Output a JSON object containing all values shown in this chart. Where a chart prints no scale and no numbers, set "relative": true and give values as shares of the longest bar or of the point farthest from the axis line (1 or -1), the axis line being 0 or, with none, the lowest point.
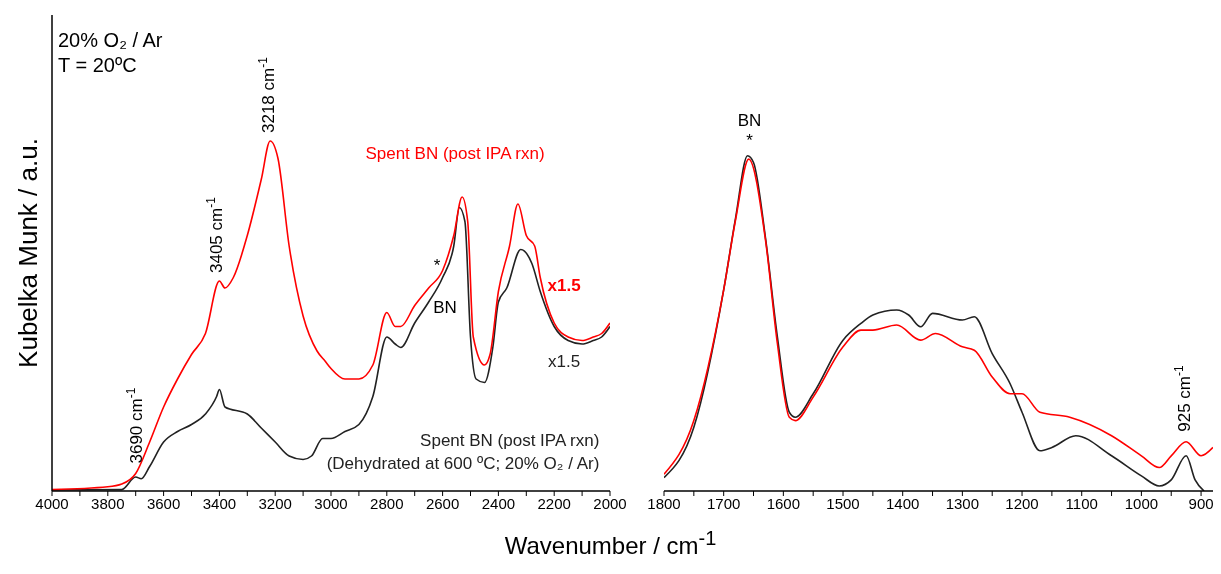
{
  "chart_data": [
    {
      "type": "line",
      "ylabel": "Kubelka Munk / a.u.",
      "xlabel": "Wavenumber / cm$^{-1}$",
      "relative": true,
      "tick_labels": "x",
      "xlim": [
        4000,
        2000
      ],
      "xticks": [
        4000,
        {
          "value": 3900,
          "label": null
        },
        3800,
        {
          "value": 3700,
          "label": null
        },
        3600,
        {
          "value": 3500,
          "label": null
        },
        3400,
        {
          "value": 3300,
          "label": null
        },
        3200,
        {
          "value": 3100,
          "label": null
        },
        3000,
        {
          "value": 2900,
          "label": null
        },
        2800,
        {
          "value": 2700,
          "label": null
        },
        2600,
        {
          "value": 2500,
          "label": null
        },
        2400,
        {
          "value": 2300,
          "label": null
        },
        2200,
        {
          "value": 2100,
          "label": null
        },
        2000
      ],
      "annotations": [
        "20% O₂ / Ar",
        "T = 20ºC",
        {
          "text": "3218 cm$^{-1}$",
          "x": 3218,
          "y": 1.0
        },
        {
          "text": "3405 cm$^{-1}$",
          "x": 3405,
          "y": 0.6
        },
        {
          "text": "3690 cm$^{-1}$",
          "x": 3690,
          "y": 0.05
        },
        {
          "text": "x1.5",
          "x": 2150,
          "y": 0.44
        },
        {
          "text": "x1.5",
          "x": 2150,
          "y": 0.43
        },
        {
          "text": "*",
          "x": 2570,
          "y": 0.68
        },
        {
          "text": "BN",
          "x": 2570,
          "y": 0.68
        }
      ],
      "series": [
        {
          "name": "Spent BN (post IPA rxn)",
          "color": "#ff0000",
          "x": [
            4000,
            3800,
            3750,
            3700,
            3650,
            3600,
            3550,
            3500,
            3450,
            3400,
            3380,
            3350,
            3300,
            3250,
            3218,
            3190,
            3150,
            3100,
            3050,
            3020,
            3000,
            2950,
            2900,
            2850,
            2800,
            2770,
            2750,
            2700,
            2650,
            2600,
            2560,
            2530,
            2510,
            2490,
            2450,
            2430,
            2400,
            2360,
            2330,
            2300,
            2270,
            2250,
            2200,
            2150,
            2100,
            2060,
            2030,
            2000
          ],
          "values": [
            0.004,
            0.012,
            0.02,
            0.05,
            0.14,
            0.24,
            0.32,
            0.39,
            0.45,
            0.6,
            0.58,
            0.61,
            0.73,
            0.89,
            1.0,
            0.95,
            0.7,
            0.5,
            0.4,
            0.37,
            0.35,
            0.32,
            0.32,
            0.36,
            0.51,
            0.47,
            0.47,
            0.53,
            0.58,
            0.63,
            0.73,
            0.84,
            0.77,
            0.44,
            0.36,
            0.39,
            0.57,
            0.7,
            0.82,
            0.73,
            0.7,
            0.61,
            0.48,
            0.44,
            0.43,
            0.44,
            0.45,
            0.48
          ]
        },
        {
          "name": "Spent BN (post IPA rxn)\n(Dehydrated at 600 ºC; 20% O₂ / Ar)",
          "color": "#222222",
          "x": [
            4000,
            3750,
            3700,
            3680,
            3650,
            3600,
            3550,
            3500,
            3450,
            3410,
            3400,
            3380,
            3300,
            3250,
            3200,
            3150,
            3100,
            3070,
            3030,
            3000,
            2950,
            2900,
            2850,
            2800,
            2770,
            2750,
            2700,
            2650,
            2600,
            2560,
            2540,
            2520,
            2500,
            2480,
            2450,
            2420,
            2400,
            2370,
            2320,
            2280,
            2250,
            2200,
            2150,
            2100,
            2060,
            2030,
            2000
          ],
          "values": [
            0.003,
            0.004,
            0.04,
            0.035,
            0.07,
            0.14,
            0.17,
            0.19,
            0.22,
            0.27,
            0.29,
            0.24,
            0.22,
            0.18,
            0.14,
            0.1,
            0.09,
            0.1,
            0.15,
            0.15,
            0.17,
            0.19,
            0.27,
            0.44,
            0.42,
            0.41,
            0.48,
            0.54,
            0.61,
            0.7,
            0.81,
            0.77,
            0.44,
            0.32,
            0.31,
            0.41,
            0.54,
            0.58,
            0.69,
            0.65,
            0.57,
            0.47,
            0.43,
            0.42,
            0.43,
            0.44,
            0.47
          ]
        }
      ]
    },
    {
      "type": "line",
      "relative": true,
      "tick_labels": "x",
      "xlim": [
        1800,
        880
      ],
      "xticks": [
        1800,
        {
          "value": 1750,
          "label": null
        },
        1700,
        {
          "value": 1650,
          "label": null
        },
        1600,
        {
          "value": 1550,
          "label": null
        },
        1500,
        {
          "value": 1450,
          "label": null
        },
        1400,
        {
          "value": 1350,
          "label": null
        },
        1300,
        {
          "value": 1250,
          "label": null
        },
        1200,
        {
          "value": 1150,
          "label": null
        },
        1100,
        {
          "value": 1050,
          "label": null
        },
        1000,
        {
          "value": 950,
          "label": null
        },
        900
      ],
      "annotations": [
        {
          "text": "BN",
          "x": 1660,
          "y": 1.0
        },
        {
          "text": "*",
          "x": 1660,
          "y": 1.0
        },
        {
          "text": "925 cm$^{-1}$",
          "x": 925,
          "y": 0.147
        }
      ],
      "series": [
        {
          "color": "#ff0000",
          "x": [
            1800,
            1750,
            1700,
            1680,
            1658,
            1630,
            1610,
            1590,
            1580,
            1550,
            1500,
            1470,
            1450,
            1410,
            1370,
            1345,
            1300,
            1280,
            1250,
            1220,
            1200,
            1170,
            1120,
            1050,
            1000,
            970,
            950,
            925,
            900,
            880
          ],
          "values": [
            0.05,
            0.21,
            0.6,
            0.81,
            0.99,
            0.75,
            0.44,
            0.22,
            0.21,
            0.28,
            0.43,
            0.48,
            0.48,
            0.495,
            0.45,
            0.47,
            0.43,
            0.42,
            0.34,
            0.29,
            0.29,
            0.235,
            0.22,
            0.165,
            0.105,
            0.07,
            0.105,
            0.147,
            0.105,
            0.13
          ]
        },
        {
          "color": "#222222",
          "x": [
            1800,
            1750,
            1700,
            1680,
            1660,
            1650,
            1630,
            1610,
            1590,
            1580,
            1550,
            1500,
            1470,
            1450,
            1410,
            1390,
            1370,
            1350,
            1300,
            1280,
            1250,
            1220,
            1200,
            1170,
            1150,
            1110,
            1050,
            1000,
            970,
            950,
            925,
            910,
            895
          ],
          "values": [
            0.04,
            0.19,
            0.6,
            0.815,
            1.0,
            0.98,
            0.756,
            0.46,
            0.235,
            0.22,
            0.29,
            0.45,
            0.5,
            0.525,
            0.54,
            0.525,
            0.49,
            0.53,
            0.51,
            0.52,
            0.41,
            0.32,
            0.235,
            0.12,
            0.13,
            0.165,
            0.105,
            0.045,
            0.015,
            0.033,
            0.105,
            0.033,
            0
          ]
        }
      ]
    }
  ]
}
